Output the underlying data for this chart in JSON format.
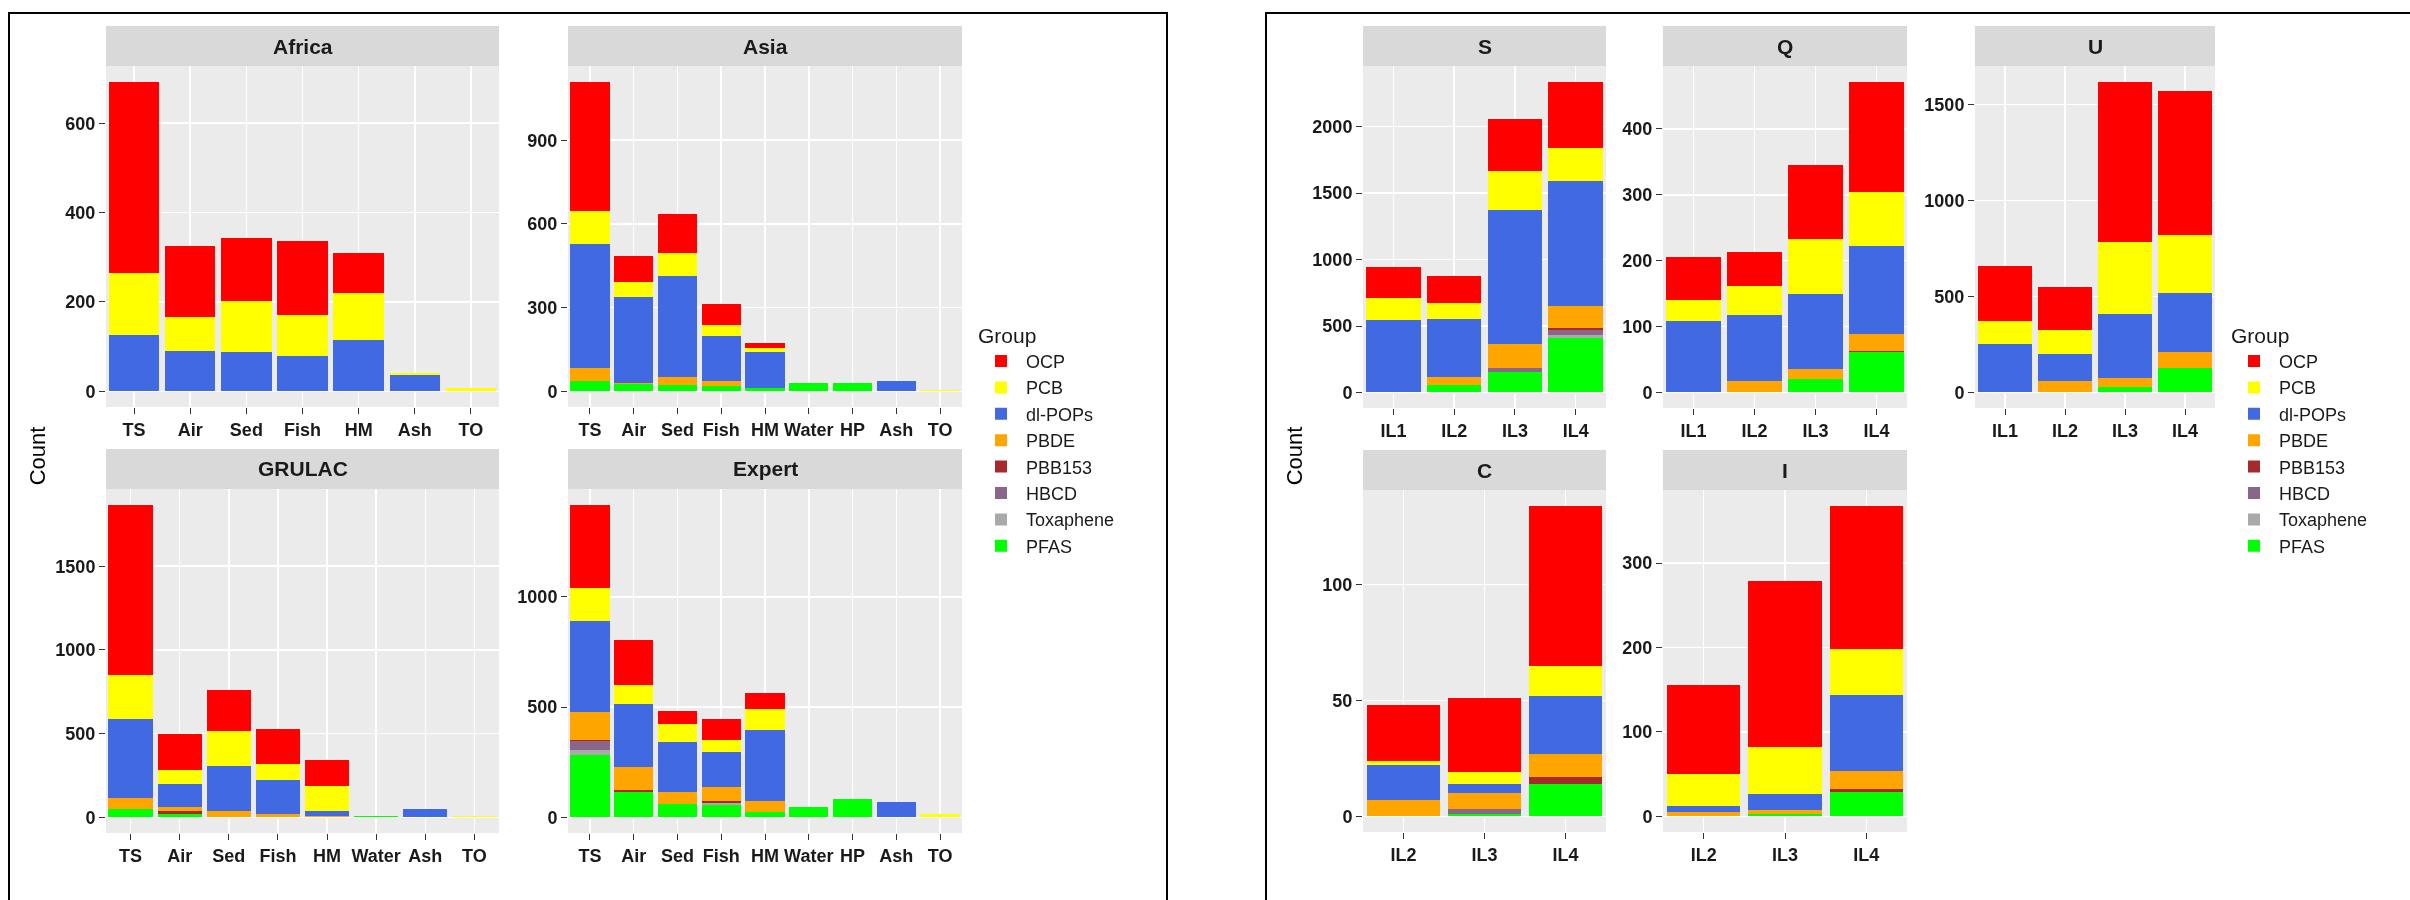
{
  "chart_data": [
    {
      "type": "bar",
      "title": "Africa",
      "ylabel": "Count",
      "stacked": true,
      "grid": true,
      "legend": false,
      "ylim": [
        -35,
        728
      ],
      "yticks": [
        0,
        200,
        400,
        600
      ],
      "categories": [
        "TS",
        "Air",
        "Sed",
        "Fish",
        "HM",
        "Ash",
        "TO"
      ],
      "series": [
        {
          "color": "#4169e1",
          "values": [
            127,
            90,
            87,
            80,
            116,
            37,
            null
          ]
        },
        {
          "color": "#ffff00",
          "values": [
            137,
            77,
            115,
            91,
            105,
            3,
            8
          ]
        },
        {
          "color": "#ff0000",
          "values": [
            429,
            158,
            141,
            165,
            89,
            null,
            null
          ]
        }
      ]
    },
    {
      "type": "bar",
      "title": "Asia",
      "stacked": true,
      "grid": true,
      "legend": false,
      "ylim": [
        -56,
        1166
      ],
      "yticks": [
        0,
        300,
        600,
        900
      ],
      "categories": [
        "TS",
        "Air",
        "Sed",
        "Fish",
        "HM",
        "Water",
        "HP",
        "Ash",
        "TO"
      ],
      "series": [
        {
          "color": "#00ff00",
          "values": [
            38,
            26,
            24,
            18,
            13,
            30,
            30,
            null,
            null
          ]
        },
        {
          "color": "#ffa500",
          "values": [
            44,
            5,
            28,
            18,
            null,
            null,
            null,
            null,
            null
          ]
        },
        {
          "color": "#4169e1",
          "values": [
            445,
            306,
            360,
            162,
            127,
            null,
            null,
            36,
            null
          ]
        },
        {
          "color": "#ffff00",
          "values": [
            121,
            56,
            85,
            39,
            17,
            null,
            null,
            null,
            6
          ]
        },
        {
          "color": "#ff0000",
          "values": [
            462,
            93,
            139,
            76,
            17,
            null,
            null,
            null,
            null
          ]
        }
      ]
    },
    {
      "type": "bar",
      "title": "GRULAC",
      "stacked": true,
      "grid": true,
      "legend": false,
      "ylim": [
        -93,
        1961
      ],
      "yticks": [
        0,
        500,
        1000,
        1500
      ],
      "categories": [
        "TS",
        "Air",
        "Sed",
        "Fish",
        "HM",
        "Water",
        "Ash",
        "TO"
      ],
      "series": [
        {
          "color": "#00ff00",
          "values": [
            50,
            21,
            null,
            null,
            null,
            8,
            null,
            null
          ]
        },
        {
          "color": "#a52a2a",
          "values": [
            null,
            16,
            null,
            null,
            null,
            null,
            null,
            null
          ]
        },
        {
          "color": "#ffa500",
          "values": [
            68,
            23,
            41,
            21,
            11,
            null,
            null,
            null
          ]
        },
        {
          "color": "#4169e1",
          "values": [
            469,
            138,
            264,
            205,
            30,
            null,
            49,
            null
          ]
        },
        {
          "color": "#ffff00",
          "values": [
            264,
            86,
            213,
            96,
            146,
            null,
            null,
            8
          ]
        },
        {
          "color": "#ff0000",
          "values": [
            1017,
            215,
            245,
            207,
            155,
            null,
            null,
            null
          ]
        }
      ]
    },
    {
      "type": "bar",
      "title": "Expert",
      "stacked": true,
      "grid": true,
      "legend": "right",
      "legend_title": "Group",
      "ylim": [
        -71,
        1489
      ],
      "yticks": [
        0,
        500,
        1000
      ],
      "categories": [
        "TS",
        "Air",
        "Sed",
        "Fish",
        "HM",
        "Water",
        "HP",
        "Ash",
        "TO"
      ],
      "series": [
        {
          "name": "PFAS",
          "color": "#00ff00",
          "values": [
            283,
            114,
            61,
            55,
            24,
            46,
            84,
            null,
            null
          ]
        },
        {
          "name": "Toxaphene",
          "color": "#a9a9a9",
          "values": [
            23,
            null,
            null,
            10,
            null,
            null,
            null,
            null,
            null
          ]
        },
        {
          "name": "HBCD",
          "color": "#8b668b",
          "values": [
            38,
            null,
            null,
            null,
            null,
            null,
            null,
            null,
            null
          ]
        },
        {
          "name": "PBB153",
          "color": "#a52a2a",
          "values": [
            8,
            8,
            null,
            11,
            null,
            null,
            null,
            null,
            null
          ]
        },
        {
          "name": "PBDE",
          "color": "#ffa500",
          "values": [
            125,
            108,
            52,
            60,
            52,
            null,
            null,
            null,
            null
          ]
        },
        {
          "name": "dl-POPs",
          "color": "#4169e1",
          "values": [
            414,
            283,
            230,
            162,
            318,
            null,
            null,
            70,
            null
          ]
        },
        {
          "name": "PCB",
          "color": "#ffff00",
          "values": [
            148,
            88,
            82,
            52,
            96,
            null,
            null,
            null,
            15
          ]
        },
        {
          "name": "OCP",
          "color": "#ff0000",
          "values": [
            379,
            202,
            59,
            96,
            75,
            null,
            null,
            null,
            null
          ]
        }
      ]
    },
    {
      "type": "bar",
      "title": "S",
      "ylabel": "Count",
      "stacked": true,
      "grid": true,
      "legend": false,
      "ylim": [
        -117,
        2457
      ],
      "yticks": [
        0,
        500,
        1000,
        1500,
        2000
      ],
      "categories": [
        "IL1",
        "IL2",
        "IL3",
        "IL4"
      ],
      "series": [
        {
          "color": "#00ff00",
          "values": [
            null,
            56,
            157,
            412
          ]
        },
        {
          "color": "#a9a9a9",
          "values": [
            null,
            null,
            null,
            23
          ]
        },
        {
          "color": "#8b668b",
          "values": [
            null,
            null,
            29,
            36
          ]
        },
        {
          "color": "#a52a2a",
          "values": [
            null,
            null,
            null,
            16
          ]
        },
        {
          "color": "#ffa500",
          "values": [
            null,
            62,
            177,
            167
          ]
        },
        {
          "color": "#4169e1",
          "values": [
            542,
            438,
            1010,
            938
          ]
        },
        {
          "color": "#ffff00",
          "values": [
            170,
            120,
            294,
            245
          ]
        },
        {
          "color": "#ff0000",
          "values": [
            232,
            197,
            389,
            503
          ]
        }
      ]
    },
    {
      "type": "bar",
      "title": "Q",
      "stacked": true,
      "grid": true,
      "legend": false,
      "ylim": [
        -23.6,
        495.6
      ],
      "yticks": [
        0,
        100,
        200,
        300,
        400
      ],
      "categories": [
        "IL1",
        "IL2",
        "IL3",
        "IL4"
      ],
      "series": [
        {
          "color": "#00ff00",
          "values": [
            null,
            null,
            20,
            61
          ]
        },
        {
          "color": "#a52a2a",
          "values": [
            null,
            null,
            null,
            2
          ]
        },
        {
          "color": "#ffa500",
          "values": [
            null,
            18,
            16,
            25
          ]
        },
        {
          "color": "#4169e1",
          "values": [
            108,
            99,
            113,
            135
          ]
        },
        {
          "color": "#ffff00",
          "values": [
            32,
            44,
            84,
            81
          ]
        },
        {
          "color": "#ff0000",
          "values": [
            66,
            52,
            113,
            168
          ]
        }
      ]
    },
    {
      "type": "bar",
      "title": "U",
      "stacked": true,
      "grid": true,
      "legend": "right",
      "legend_title": "Group",
      "ylim": [
        -81,
        1701
      ],
      "yticks": [
        0,
        500,
        1000,
        1500
      ],
      "categories": [
        "IL1",
        "IL2",
        "IL3",
        "IL4"
      ],
      "series": [
        {
          "name": "PFAS",
          "color": "#00ff00",
          "values": [
            null,
            null,
            30,
            130
          ]
        },
        {
          "name": "Toxaphene",
          "color": "#a9a9a9",
          "values": [
            null,
            null,
            null,
            null
          ]
        },
        {
          "name": "HBCD",
          "color": "#8b668b",
          "values": [
            null,
            null,
            null,
            null
          ]
        },
        {
          "name": "PBB153",
          "color": "#a52a2a",
          "values": [
            null,
            null,
            null,
            null
          ]
        },
        {
          "name": "PBDE",
          "color": "#ffa500",
          "values": [
            null,
            60,
            45,
            80
          ]
        },
        {
          "name": "dl-POPs",
          "color": "#4169e1",
          "values": [
            250,
            140,
            335,
            310
          ]
        },
        {
          "name": "PCB",
          "color": "#ffff00",
          "values": [
            120,
            125,
            375,
            300
          ]
        },
        {
          "name": "OCP",
          "color": "#ff0000",
          "values": [
            290,
            225,
            835,
            750
          ]
        }
      ]
    },
    {
      "type": "bar",
      "title": "C",
      "stacked": true,
      "grid": true,
      "legend": false,
      "ylim": [
        -6.7,
        140.7
      ],
      "yticks": [
        0,
        50,
        100
      ],
      "categories": [
        "IL2",
        "IL3",
        "IL4"
      ],
      "series": [
        {
          "color": "#00ff00",
          "values": [
            null,
            1,
            14
          ]
        },
        {
          "color": "#8b668b",
          "values": [
            null,
            2,
            null
          ]
        },
        {
          "color": "#a52a2a",
          "values": [
            null,
            null,
            3
          ]
        },
        {
          "color": "#ffa500",
          "values": [
            7,
            7,
            10
          ]
        },
        {
          "color": "#4169e1",
          "values": [
            15,
            4,
            25
          ]
        },
        {
          "color": "#ffff00",
          "values": [
            2,
            5,
            13
          ]
        },
        {
          "color": "#ff0000",
          "values": [
            24,
            32,
            69
          ]
        }
      ]
    },
    {
      "type": "bar",
      "title": "I",
      "stacked": true,
      "grid": true,
      "legend": false,
      "ylim": [
        -18.4,
        386.4
      ],
      "yticks": [
        0,
        100,
        200,
        300
      ],
      "categories": [
        "IL2",
        "IL3",
        "IL4"
      ],
      "series": [
        {
          "color": "#00ff00",
          "values": [
            null,
            3,
            29
          ]
        },
        {
          "color": "#a52a2a",
          "values": [
            null,
            null,
            4
          ]
        },
        {
          "color": "#ffa500",
          "values": [
            5,
            5,
            21
          ]
        },
        {
          "color": "#4169e1",
          "values": [
            7,
            19,
            90
          ]
        },
        {
          "color": "#ffff00",
          "values": [
            38,
            55,
            54
          ]
        },
        {
          "color": "#ff0000",
          "values": [
            106,
            197,
            170
          ]
        }
      ]
    }
  ]
}
